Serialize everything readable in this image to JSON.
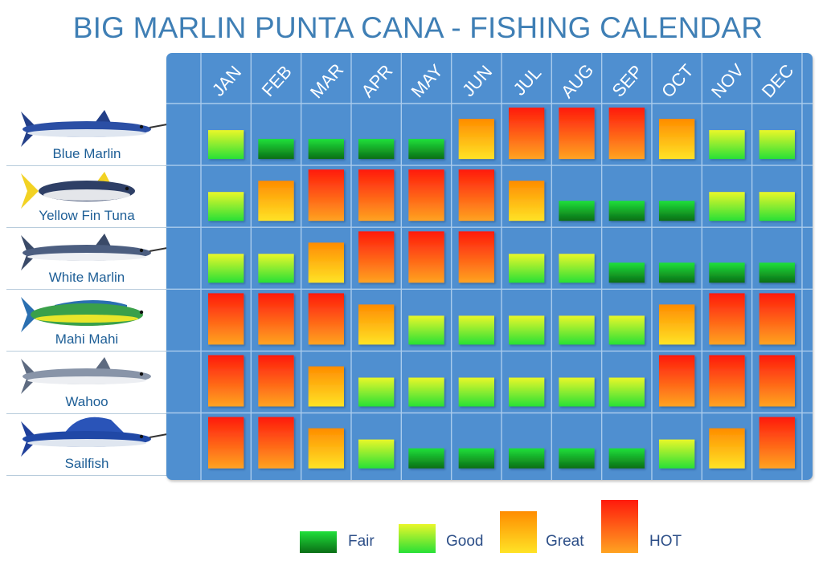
{
  "title": "BIG MARLIN PUNTA CANA - FISHING CALENDAR",
  "colors": {
    "panel": "#4f8fd0",
    "grid": "#a9cbec",
    "fair": [
      "#1fe03a",
      "#0b6e16"
    ],
    "good": [
      "#eaf72a",
      "#28e036"
    ],
    "great": [
      "#ff8c00",
      "#ffe326"
    ],
    "hot": [
      "#ff1a0c",
      "#ffa321"
    ]
  },
  "legend": [
    {
      "key": "fair",
      "label": "Fair"
    },
    {
      "key": "good",
      "label": "Good"
    },
    {
      "key": "great",
      "label": "Great"
    },
    {
      "key": "hot",
      "label": "HOT"
    }
  ],
  "fish_icons": [
    "blue-marlin-icon",
    "yellow-fin-tuna-icon",
    "white-marlin-icon",
    "mahi-mahi-icon",
    "wahoo-icon",
    "sailfish-icon"
  ],
  "chart_data": {
    "type": "heatmap",
    "title": "BIG MARLIN PUNTA CANA - FISHING CALENDAR",
    "x": [
      "JAN",
      "FEB",
      "MAR",
      "APR",
      "MAY",
      "JUN",
      "JUL",
      "AUG",
      "SEP",
      "OCT",
      "NOV",
      "DEC"
    ],
    "y": [
      "Blue Marlin",
      "Yellow Fin Tuna",
      "White Marlin",
      "Mahi Mahi",
      "Wahoo",
      "Sailfish"
    ],
    "scale": [
      "Fair",
      "Good",
      "Great",
      "HOT"
    ],
    "values": [
      [
        "Good",
        "Fair",
        "Fair",
        "Fair",
        "Fair",
        "Great",
        "HOT",
        "HOT",
        "HOT",
        "Great",
        "Good",
        "Good"
      ],
      [
        "Good",
        "Great",
        "HOT",
        "HOT",
        "HOT",
        "HOT",
        "Great",
        "Fair",
        "Fair",
        "Fair",
        "Good",
        "Good"
      ],
      [
        "Good",
        "Good",
        "Great",
        "HOT",
        "HOT",
        "HOT",
        "Good",
        "Good",
        "Fair",
        "Fair",
        "Fair",
        "Fair"
      ],
      [
        "HOT",
        "HOT",
        "HOT",
        "Great",
        "Good",
        "Good",
        "Good",
        "Good",
        "Good",
        "Great",
        "HOT",
        "HOT"
      ],
      [
        "HOT",
        "HOT",
        "Great",
        "Good",
        "Good",
        "Good",
        "Good",
        "Good",
        "Good",
        "HOT",
        "HOT",
        "HOT"
      ],
      [
        "HOT",
        "HOT",
        "Great",
        "Good",
        "Fair",
        "Fair",
        "Fair",
        "Fair",
        "Fair",
        "Good",
        "Great",
        "HOT"
      ]
    ]
  }
}
